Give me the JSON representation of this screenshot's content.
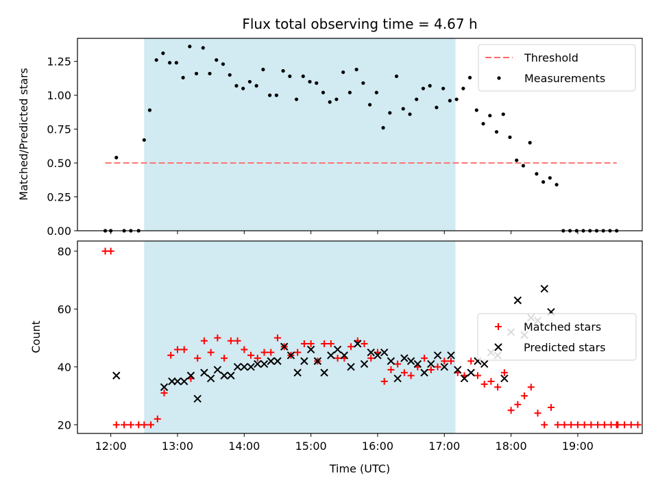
{
  "chart_data": [
    {
      "type": "scatter",
      "title": "Flux total observing time = 4.67 h",
      "ylabel": "Matched/Predicted stars",
      "xlabel": "",
      "ylim": [
        0,
        1.42
      ],
      "xlim": [
        "11:30",
        "19:58"
      ],
      "yticks": [
        0.0,
        0.25,
        0.5,
        0.75,
        1.0,
        1.25
      ],
      "ytick_labels": [
        "0.00",
        "0.25",
        "0.50",
        "0.75",
        "1.00",
        "1.25"
      ],
      "shaded_span": [
        "12:30",
        "17:10"
      ],
      "shaded_color": "#add8e6",
      "threshold": {
        "name": "Threshold",
        "value": 0.5,
        "x_range": [
          "11:55",
          "19:35"
        ],
        "color": "#ff6666"
      },
      "legend": {
        "placement": "top-right",
        "entries": [
          "Threshold",
          "Measurements"
        ]
      },
      "series": [
        {
          "name": "Measurements",
          "color": "#000000",
          "marker": "dot",
          "points": [
            [
              "11:55",
              0
            ],
            [
              "12:00",
              0
            ],
            [
              "12:05",
              0.54
            ],
            [
              "12:12",
              0
            ],
            [
              "12:18",
              0
            ],
            [
              "12:25",
              0
            ],
            [
              "12:30",
              0.67
            ],
            [
              "12:35",
              0.89
            ],
            [
              "12:41",
              1.26
            ],
            [
              "12:47",
              1.31
            ],
            [
              "12:53",
              1.24
            ],
            [
              "12:59",
              1.24
            ],
            [
              "13:05",
              1.13
            ],
            [
              "13:11",
              1.36
            ],
            [
              "13:17",
              1.16
            ],
            [
              "13:23",
              1.35
            ],
            [
              "13:29",
              1.16
            ],
            [
              "13:35",
              1.26
            ],
            [
              "13:41",
              1.23
            ],
            [
              "13:47",
              1.15
            ],
            [
              "13:53",
              1.07
            ],
            [
              "13:59",
              1.05
            ],
            [
              "14:05",
              1.1
            ],
            [
              "14:11",
              1.07
            ],
            [
              "14:17",
              1.19
            ],
            [
              "14:23",
              1.0
            ],
            [
              "14:29",
              1.0
            ],
            [
              "14:35",
              1.18
            ],
            [
              "14:41",
              1.14
            ],
            [
              "14:47",
              0.97
            ],
            [
              "14:53",
              1.14
            ],
            [
              "14:59",
              1.1
            ],
            [
              "15:05",
              1.09
            ],
            [
              "15:11",
              1.02
            ],
            [
              "15:17",
              0.95
            ],
            [
              "15:23",
              0.97
            ],
            [
              "15:29",
              1.17
            ],
            [
              "15:35",
              1.02
            ],
            [
              "15:41",
              1.19
            ],
            [
              "15:47",
              1.09
            ],
            [
              "15:53",
              0.93
            ],
            [
              "15:59",
              1.02
            ],
            [
              "16:05",
              0.76
            ],
            [
              "16:11",
              0.87
            ],
            [
              "16:17",
              1.14
            ],
            [
              "16:23",
              0.9
            ],
            [
              "16:29",
              0.86
            ],
            [
              "16:35",
              0.97
            ],
            [
              "16:41",
              1.05
            ],
            [
              "16:47",
              1.07
            ],
            [
              "16:53",
              0.91
            ],
            [
              "16:59",
              1.05
            ],
            [
              "17:05",
              0.96
            ],
            [
              "17:11",
              0.97
            ],
            [
              "17:17",
              1.05
            ],
            [
              "17:23",
              1.13
            ],
            [
              "17:29",
              0.89
            ],
            [
              "17:35",
              0.79
            ],
            [
              "17:41",
              0.85
            ],
            [
              "17:47",
              0.73
            ],
            [
              "17:53",
              0.86
            ],
            [
              "17:59",
              0.69
            ],
            [
              "18:05",
              0.52
            ],
            [
              "18:11",
              0.48
            ],
            [
              "18:17",
              0.65
            ],
            [
              "18:23",
              0.42
            ],
            [
              "18:29",
              0.36
            ],
            [
              "18:35",
              0.39
            ],
            [
              "18:41",
              0.34
            ],
            [
              "18:47",
              0
            ],
            [
              "18:53",
              0
            ],
            [
              "18:59",
              0
            ],
            [
              "19:05",
              0
            ],
            [
              "19:11",
              0
            ],
            [
              "19:17",
              0
            ],
            [
              "19:23",
              0
            ],
            [
              "19:29",
              0
            ],
            [
              "19:35",
              0
            ]
          ]
        }
      ]
    },
    {
      "type": "scatter",
      "title": "",
      "xlabel": "Time (UTC)",
      "ylabel": "Count",
      "ylim": [
        17,
        83.5
      ],
      "xlim": [
        "11:30",
        "19:58"
      ],
      "yticks": [
        20,
        40,
        60,
        80
      ],
      "ytick_labels": [
        "20",
        "40",
        "60",
        "80"
      ],
      "xticks": [
        "12:00",
        "13:00",
        "14:00",
        "15:00",
        "16:00",
        "17:00",
        "18:00",
        "19:00"
      ],
      "shaded_span": [
        "12:30",
        "17:10"
      ],
      "shaded_color": "#add8e6",
      "legend": {
        "placement": "right",
        "entries": [
          "Matched stars",
          "Predicted stars"
        ]
      },
      "series": [
        {
          "name": "Matched stars",
          "color": "#ff0000",
          "marker": "plus",
          "points": [
            [
              "11:55",
              80
            ],
            [
              "12:00",
              80
            ],
            [
              "12:05",
              20
            ],
            [
              "12:12",
              20
            ],
            [
              "12:18",
              20
            ],
            [
              "12:25",
              20
            ],
            [
              "12:30",
              20
            ],
            [
              "12:36",
              20
            ],
            [
              "12:42",
              22
            ],
            [
              "12:48",
              31
            ],
            [
              "12:54",
              44
            ],
            [
              "13:00",
              46
            ],
            [
              "13:06",
              46
            ],
            [
              "13:12",
              36
            ],
            [
              "13:18",
              43
            ],
            [
              "13:24",
              49
            ],
            [
              "13:30",
              45
            ],
            [
              "13:36",
              50
            ],
            [
              "13:42",
              43
            ],
            [
              "13:48",
              49
            ],
            [
              "13:54",
              49
            ],
            [
              "14:00",
              46
            ],
            [
              "14:06",
              44
            ],
            [
              "14:12",
              43
            ],
            [
              "14:18",
              45
            ],
            [
              "14:24",
              45
            ],
            [
              "14:30",
              50
            ],
            [
              "14:36",
              47
            ],
            [
              "14:42",
              44
            ],
            [
              "14:48",
              45
            ],
            [
              "14:54",
              48
            ],
            [
              "15:00",
              48
            ],
            [
              "15:06",
              42
            ],
            [
              "15:12",
              48
            ],
            [
              "15:18",
              48
            ],
            [
              "15:24",
              43
            ],
            [
              "15:30",
              43
            ],
            [
              "15:36",
              47
            ],
            [
              "15:42",
              49
            ],
            [
              "15:48",
              48
            ],
            [
              "15:54",
              43
            ],
            [
              "16:00",
              45
            ],
            [
              "16:06",
              35
            ],
            [
              "16:12",
              39
            ],
            [
              "16:18",
              41
            ],
            [
              "16:24",
              38
            ],
            [
              "16:30",
              37
            ],
            [
              "16:36",
              40
            ],
            [
              "16:42",
              43
            ],
            [
              "16:48",
              39
            ],
            [
              "16:54",
              40
            ],
            [
              "17:00",
              42
            ],
            [
              "17:06",
              42
            ],
            [
              "17:12",
              38
            ],
            [
              "17:18",
              37
            ],
            [
              "17:24",
              42
            ],
            [
              "17:30",
              37
            ],
            [
              "17:36",
              34
            ],
            [
              "17:42",
              35
            ],
            [
              "17:48",
              33
            ],
            [
              "17:54",
              38
            ],
            [
              "18:00",
              25
            ],
            [
              "18:06",
              27
            ],
            [
              "18:12",
              30
            ],
            [
              "18:18",
              33
            ],
            [
              "18:24",
              24
            ],
            [
              "18:30",
              20
            ],
            [
              "18:36",
              26
            ],
            [
              "18:42",
              20
            ],
            [
              "18:48",
              20
            ],
            [
              "18:54",
              20
            ],
            [
              "19:00",
              20
            ],
            [
              "19:06",
              20
            ],
            [
              "19:12",
              20
            ],
            [
              "19:18",
              20
            ],
            [
              "19:24",
              20
            ],
            [
              "19:30",
              20
            ],
            [
              "19:36",
              20
            ],
            [
              "19:42",
              20
            ],
            [
              "19:48",
              20
            ],
            [
              "19:54",
              20
            ],
            [
              "19:35",
              20
            ]
          ]
        },
        {
          "name": "Predicted stars",
          "color": "#000000",
          "marker": "x",
          "points": [
            [
              "12:05",
              37
            ],
            [
              "12:48",
              33
            ],
            [
              "12:55",
              35
            ],
            [
              "13:00",
              35
            ],
            [
              "13:06",
              35
            ],
            [
              "13:12",
              37
            ],
            [
              "13:18",
              29
            ],
            [
              "13:24",
              38
            ],
            [
              "13:30",
              36
            ],
            [
              "13:36",
              39
            ],
            [
              "13:42",
              37
            ],
            [
              "13:48",
              37
            ],
            [
              "13:54",
              40
            ],
            [
              "14:00",
              40
            ],
            [
              "14:06",
              40
            ],
            [
              "14:12",
              41
            ],
            [
              "14:18",
              41
            ],
            [
              "14:24",
              42
            ],
            [
              "14:30",
              42
            ],
            [
              "14:36",
              47
            ],
            [
              "14:42",
              44
            ],
            [
              "14:48",
              38
            ],
            [
              "14:54",
              42
            ],
            [
              "15:00",
              46
            ],
            [
              "15:06",
              42
            ],
            [
              "15:12",
              38
            ],
            [
              "15:18",
              44
            ],
            [
              "15:24",
              46
            ],
            [
              "15:30",
              44
            ],
            [
              "15:36",
              40
            ],
            [
              "15:42",
              48
            ],
            [
              "15:48",
              41
            ],
            [
              "15:54",
              45
            ],
            [
              "16:00",
              44
            ],
            [
              "16:06",
              45
            ],
            [
              "16:12",
              42
            ],
            [
              "16:18",
              36
            ],
            [
              "16:24",
              43
            ],
            [
              "16:30",
              42
            ],
            [
              "16:36",
              41
            ],
            [
              "16:42",
              38
            ],
            [
              "16:48",
              41
            ],
            [
              "16:54",
              44
            ],
            [
              "17:00",
              40
            ],
            [
              "17:06",
              44
            ],
            [
              "17:12",
              39
            ],
            [
              "17:18",
              36
            ],
            [
              "17:24",
              38
            ],
            [
              "17:30",
              42
            ],
            [
              "17:36",
              41
            ],
            [
              "17:42",
              45
            ],
            [
              "17:48",
              44
            ],
            [
              "17:54",
              36
            ],
            [
              "18:00",
              52
            ],
            [
              "18:06",
              63
            ],
            [
              "18:12",
              51
            ],
            [
              "18:18",
              57
            ],
            [
              "18:24",
              56
            ],
            [
              "18:30",
              67
            ],
            [
              "18:36",
              59
            ]
          ]
        }
      ]
    }
  ]
}
